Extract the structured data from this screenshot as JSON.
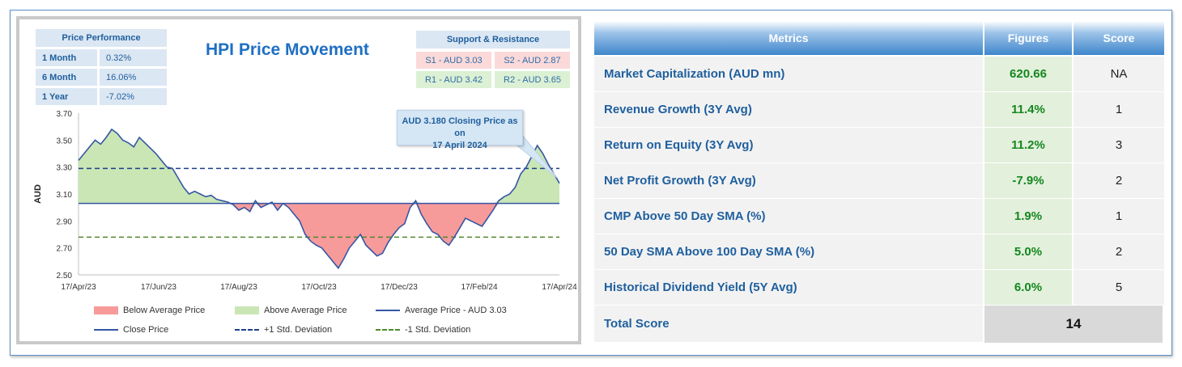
{
  "price_performance": {
    "header": "Price Performance",
    "rows": [
      {
        "label": "1 Month",
        "value": "0.32%"
      },
      {
        "label": "6 Month",
        "value": "16.06%"
      },
      {
        "label": "1 Year",
        "value": "-7.02%"
      }
    ]
  },
  "support_resistance": {
    "header": "Support & Resistance",
    "s1": "S1 - AUD 3.03",
    "s2": "S2 - AUD 2.87",
    "r1": "R1 - AUD 3.42",
    "r2": "R2 - AUD 3.65"
  },
  "callout": {
    "line1": "AUD 3.180 Closing Price as on",
    "line2": "17 April 2024"
  },
  "legend": {
    "below": "Below Average Price",
    "above": "Above Average Price",
    "avg": "Average Price - AUD 3.03",
    "close": "Close Price",
    "plus": "+1 Std. Deviation",
    "minus": "-1 Std. Deviation"
  },
  "chart_data": {
    "type": "line",
    "title": "HPI Price Movement",
    "ylabel": "AUD",
    "xlabel": "",
    "ylim": [
      2.5,
      3.7
    ],
    "yticks": [
      "3.70",
      "3.50",
      "3.30",
      "3.10",
      "2.90",
      "2.70",
      "2.50"
    ],
    "xticks": [
      "17/Apr/23",
      "17/Jun/23",
      "17/Aug/23",
      "17/Oct/23",
      "17/Dec/23",
      "17/Feb/24",
      "17/Apr/24"
    ],
    "average": 3.03,
    "plus_std": 3.29,
    "minus_std": 2.78,
    "close_series": [
      3.35,
      3.4,
      3.45,
      3.5,
      3.47,
      3.52,
      3.58,
      3.55,
      3.5,
      3.48,
      3.45,
      3.52,
      3.48,
      3.44,
      3.4,
      3.35,
      3.3,
      3.29,
      3.22,
      3.15,
      3.1,
      3.12,
      3.1,
      3.08,
      3.09,
      3.06,
      3.05,
      3.04,
      3.02,
      2.98,
      3.0,
      2.97,
      3.05,
      3.0,
      3.02,
      3.04,
      2.98,
      3.03,
      3.0,
      2.95,
      2.9,
      2.8,
      2.75,
      2.72,
      2.7,
      2.65,
      2.6,
      2.55,
      2.62,
      2.7,
      2.75,
      2.8,
      2.72,
      2.68,
      2.64,
      2.66,
      2.74,
      2.8,
      2.85,
      2.88,
      3.0,
      3.05,
      2.95,
      2.88,
      2.82,
      2.8,
      2.75,
      2.72,
      2.78,
      2.85,
      2.92,
      2.9,
      2.88,
      2.86,
      2.92,
      2.98,
      3.05,
      3.08,
      3.1,
      3.15,
      3.25,
      3.3,
      3.38,
      3.46,
      3.4,
      3.32,
      3.25,
      3.18
    ]
  },
  "metrics_table": {
    "headers": [
      "Metrics",
      "Figures",
      "Score"
    ],
    "rows": [
      {
        "metric": "Market Capitalization (AUD mn)",
        "figure": "620.66",
        "score": "NA"
      },
      {
        "metric": "Revenue Growth (3Y Avg)",
        "figure": "11.4%",
        "score": "1"
      },
      {
        "metric": "Return on Equity (3Y Avg)",
        "figure": "11.2%",
        "score": "3"
      },
      {
        "metric": "Net Profit Growth (3Y Avg)",
        "figure": "-7.9%",
        "score": "2"
      },
      {
        "metric": "CMP Above 50 Day SMA (%)",
        "figure": "1.9%",
        "score": "1"
      },
      {
        "metric": "50 Day SMA Above 100 Day SMA (%)",
        "figure": "5.0%",
        "score": "2"
      },
      {
        "metric": "Historical Dividend Yield (5Y Avg)",
        "figure": "6.0%",
        "score": "5"
      }
    ],
    "total_label": "Total Score",
    "total_value": "14"
  },
  "colors": {
    "below_fill": "#f79a9a",
    "above_fill": "#c9e6b4",
    "line": "#3556a4",
    "plus_line": "#1f3f8a",
    "minus_line": "#4d8a2a"
  }
}
